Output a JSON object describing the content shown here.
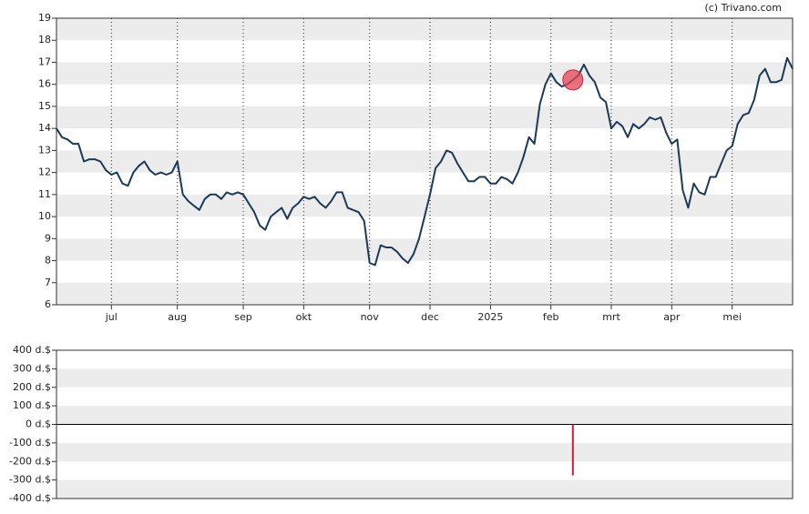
{
  "chart_data": [
    {
      "type": "line",
      "credit": "(c) Trivano.com",
      "color": "#1b3a57",
      "grid": true,
      "values": [
        14.0,
        13.6,
        13.5,
        13.3,
        13.3,
        12.5,
        12.6,
        12.6,
        12.5,
        12.1,
        11.9,
        12.0,
        11.5,
        11.4,
        12.0,
        12.3,
        12.5,
        12.1,
        11.9,
        12.0,
        11.9,
        12.0,
        12.5,
        11.0,
        10.7,
        10.5,
        10.3,
        10.8,
        11.0,
        11.0,
        10.8,
        11.1,
        11.0,
        11.1,
        11.0,
        10.6,
        10.2,
        9.6,
        9.4,
        10.0,
        10.2,
        10.4,
        9.9,
        10.4,
        10.6,
        10.9,
        10.8,
        10.9,
        10.6,
        10.4,
        10.7,
        11.1,
        11.1,
        10.4,
        10.3,
        10.2,
        9.8,
        7.9,
        7.8,
        8.7,
        8.6,
        8.6,
        8.4,
        8.1,
        7.9,
        8.3,
        9.0,
        10.0,
        11.0,
        12.2,
        12.5,
        13.0,
        12.9,
        12.4,
        12.0,
        11.6,
        11.6,
        11.8,
        11.8,
        11.5,
        11.5,
        11.8,
        11.7,
        11.5,
        12.0,
        12.7,
        13.6,
        13.3,
        15.1,
        16.0,
        16.5,
        16.1,
        15.9,
        16.0,
        16.2,
        16.4,
        16.9,
        16.4,
        16.1,
        15.4,
        15.2,
        14.0,
        14.3,
        14.1,
        13.6,
        14.2,
        14.0,
        14.2,
        14.5,
        14.4,
        14.5,
        13.8,
        13.3,
        13.5,
        11.2,
        10.4,
        11.5,
        11.1,
        11.0,
        11.8,
        11.8,
        12.4,
        13.0,
        13.2,
        14.2,
        14.6,
        14.7,
        15.3,
        16.4,
        16.7,
        16.1,
        16.1,
        16.2,
        17.2,
        16.7
      ],
      "xlim": [
        0,
        134
      ],
      "xticks": [
        {
          "value": 10,
          "label": "jul"
        },
        {
          "value": 22,
          "label": "aug"
        },
        {
          "value": 34,
          "label": "sep"
        },
        {
          "value": 45,
          "label": "okt"
        },
        {
          "value": 57,
          "label": "nov"
        },
        {
          "value": 68,
          "label": "dec"
        },
        {
          "value": 79,
          "label": "2025"
        },
        {
          "value": 90,
          "label": "feb"
        },
        {
          "value": 101,
          "label": "mrt"
        },
        {
          "value": 112,
          "label": "apr"
        },
        {
          "value": 123,
          "label": "mei"
        }
      ],
      "ylim": [
        6,
        19
      ],
      "yticks": [
        6,
        7,
        8,
        9,
        10,
        11,
        12,
        13,
        14,
        15,
        16,
        17,
        18,
        19
      ]
    },
    {
      "type": "bar",
      "color": "#cc1f3a",
      "x": [
        94
      ],
      "values": [
        -275
      ],
      "xlim": [
        0,
        134
      ],
      "ylim": [
        -400,
        400
      ],
      "yticks": [
        {
          "value": -400,
          "label": "-400 d.$"
        },
        {
          "value": -300,
          "label": "-300 d.$"
        },
        {
          "value": -200,
          "label": "-200 d.$"
        },
        {
          "value": -100,
          "label": "-100 d.$"
        },
        {
          "value": 0,
          "label": "0 d.$"
        },
        {
          "value": 100,
          "label": "100 d.$"
        },
        {
          "value": 200,
          "label": "200 d.$"
        },
        {
          "value": 300,
          "label": "300 d.$"
        },
        {
          "value": 400,
          "label": "400 d.$"
        }
      ]
    }
  ]
}
